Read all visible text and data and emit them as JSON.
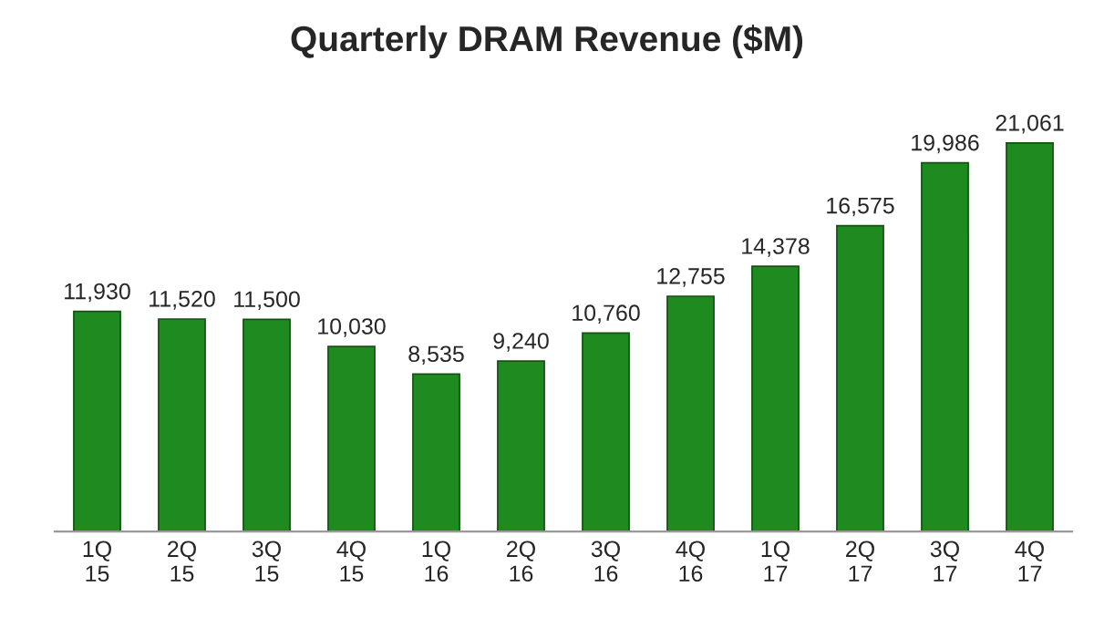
{
  "chart_data": {
    "type": "bar",
    "title": "Quarterly DRAM Revenue ($M)",
    "categories": [
      "1Q\n15",
      "2Q\n15",
      "3Q\n15",
      "4Q\n15",
      "1Q\n16",
      "2Q\n16",
      "3Q\n16",
      "4Q\n16",
      "1Q\n17",
      "2Q\n17",
      "3Q\n17",
      "4Q\n17"
    ],
    "values": [
      11930,
      11520,
      11500,
      10030,
      8535,
      9240,
      10760,
      12755,
      14378,
      16575,
      19986,
      21061
    ],
    "value_labels": [
      "11,930",
      "11,520",
      "11,500",
      "10,030",
      "8,535",
      "9,240",
      "10,760",
      "12,755",
      "14,378",
      "16,575",
      "19,986",
      "21,061"
    ],
    "color": "#1f8a1f",
    "tick_labels": "x"
  }
}
